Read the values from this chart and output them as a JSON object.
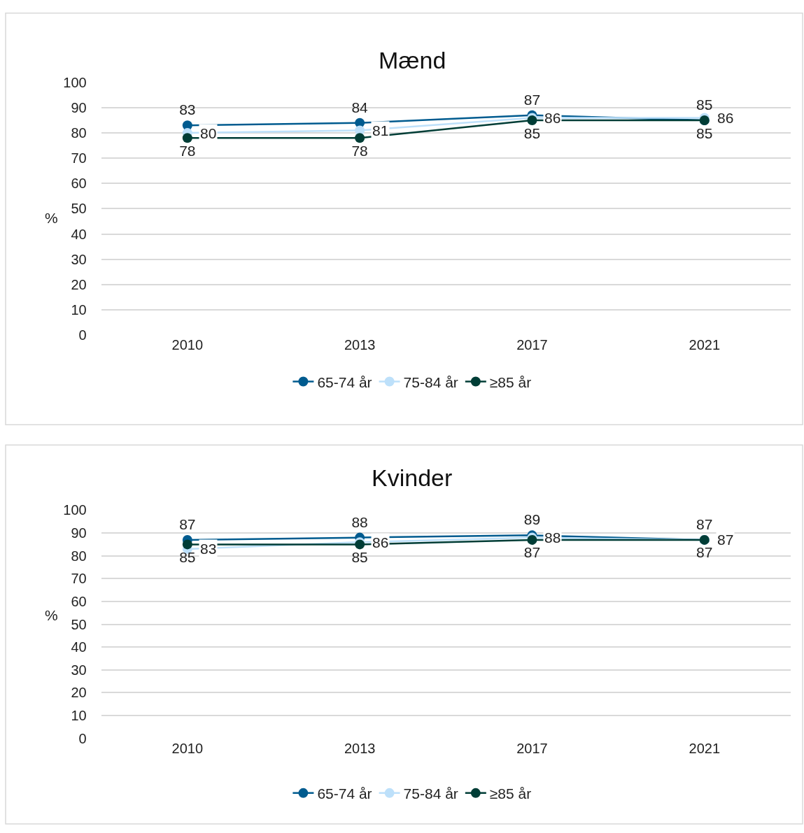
{
  "chart_data": [
    {
      "type": "line",
      "title": "Mænd",
      "ylabel": "%",
      "categories": [
        "2010",
        "2013",
        "2017",
        "2021"
      ],
      "ylim": [
        0,
        100
      ],
      "yticks": [
        0,
        10,
        20,
        30,
        40,
        50,
        60,
        70,
        80,
        90,
        100
      ],
      "grid": "y",
      "legend": "bottom",
      "marker": "circle",
      "data_labels": true,
      "series": [
        {
          "name": "65-74 år",
          "color": "#005b8f",
          "values": [
            83,
            84,
            87,
            85
          ]
        },
        {
          "name": "75-84 år",
          "color": "#bde0fa",
          "values": [
            80,
            81,
            86,
            86
          ]
        },
        {
          "name": "≥85 år",
          "color": "#003d36",
          "values": [
            78,
            78,
            85,
            85
          ]
        }
      ]
    },
    {
      "type": "line",
      "title": "Kvinder",
      "ylabel": "%",
      "categories": [
        "2010",
        "2013",
        "2017",
        "2021"
      ],
      "ylim": [
        0,
        100
      ],
      "yticks": [
        0,
        10,
        20,
        30,
        40,
        50,
        60,
        70,
        80,
        90,
        100
      ],
      "grid": "y",
      "legend": "bottom",
      "marker": "circle",
      "data_labels": true,
      "series": [
        {
          "name": "65-74 år",
          "color": "#005b8f",
          "values": [
            87,
            88,
            89,
            87
          ]
        },
        {
          "name": "75-84 år",
          "color": "#bde0fa",
          "values": [
            83,
            86,
            88,
            87
          ]
        },
        {
          "name": "≥85 år",
          "color": "#003d36",
          "values": [
            85,
            85,
            87,
            87
          ]
        }
      ]
    }
  ]
}
